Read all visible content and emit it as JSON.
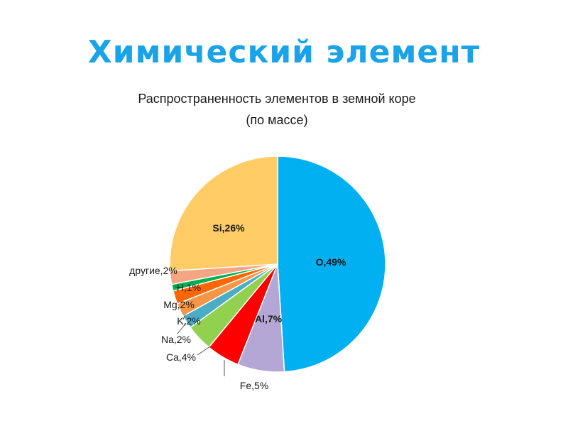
{
  "slide": {
    "title": "Химический элемент"
  },
  "chart_data": {
    "type": "pie",
    "title_lines": [
      "Распространенность элементов в земной коре",
      "(по массе)"
    ],
    "slices": [
      {
        "label": "O,49%",
        "name": "O",
        "value": 49,
        "color": "#00b0f0"
      },
      {
        "label": "Al,7%",
        "name": "Al",
        "value": 7,
        "color": "#b4a7d6"
      },
      {
        "label": "Fe,5%",
        "name": "Fe",
        "value": 5,
        "color": "#ff0000"
      },
      {
        "label": "Ca,4%",
        "name": "Ca",
        "value": 4,
        "color": "#92d050"
      },
      {
        "label": "Na,2%",
        "name": "Na",
        "value": 2,
        "color": "#4bacc6"
      },
      {
        "label": "K,2%",
        "name": "K",
        "value": 2,
        "color": "#f79646"
      },
      {
        "label": "Mg,2%",
        "name": "Mg",
        "value": 2,
        "color": "#ff6600"
      },
      {
        "label": "H,1%",
        "name": "H",
        "value": 1,
        "color": "#00b050"
      },
      {
        "label": "другие,2%",
        "name": "другие",
        "value": 2,
        "color": "#f4a582"
      },
      {
        "label": "Si,26%",
        "name": "Si",
        "value": 26,
        "color": "#ffcc66"
      }
    ]
  }
}
